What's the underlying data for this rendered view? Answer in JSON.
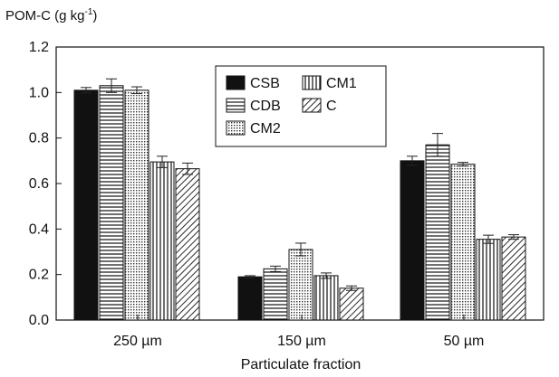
{
  "chart_data": {
    "type": "bar",
    "ylabel": "POM-C (g kg",
    "ylabel_sup": "-1",
    "ylabel_close": ")",
    "xlabel": "Particulate fraction",
    "ylim": [
      0,
      1.2
    ],
    "yticks": [
      "0.0",
      "0.2",
      "0.4",
      "0.6",
      "0.8",
      "1.0",
      "1.2"
    ],
    "categories": [
      "250 µm",
      "150 µm",
      "50 µm"
    ],
    "legend_placement": "top-center",
    "series": [
      {
        "name": "CSB",
        "pattern": "solid",
        "values": [
          1.01,
          0.19,
          0.7
        ],
        "errors": [
          0.012,
          0.005,
          0.02
        ]
      },
      {
        "name": "CDB",
        "pattern": "hlines",
        "values": [
          1.03,
          0.225,
          0.77
        ],
        "errors": [
          0.03,
          0.012,
          0.05
        ]
      },
      {
        "name": "CM2",
        "pattern": "dots",
        "values": [
          1.01,
          0.31,
          0.685
        ],
        "errors": [
          0.015,
          0.028,
          0.008
        ]
      },
      {
        "name": "CM1",
        "pattern": "vlines",
        "values": [
          0.695,
          0.195,
          0.355
        ],
        "errors": [
          0.025,
          0.012,
          0.018
        ]
      },
      {
        "name": "C",
        "pattern": "diag",
        "values": [
          0.665,
          0.14,
          0.365
        ],
        "errors": [
          0.025,
          0.01,
          0.01
        ]
      }
    ]
  }
}
